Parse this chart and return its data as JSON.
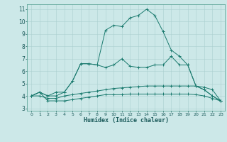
{
  "title": "",
  "xlabel": "Humidex (Indice chaleur)",
  "ylabel": "",
  "bg_color": "#cce8e8",
  "line_color": "#1a7a6e",
  "grid_color": "#aacfcf",
  "xlim": [
    -0.5,
    23.5
  ],
  "ylim": [
    2.8,
    11.4
  ],
  "xticks": [
    0,
    1,
    2,
    3,
    4,
    5,
    6,
    7,
    8,
    9,
    10,
    11,
    12,
    13,
    14,
    15,
    16,
    17,
    18,
    19,
    20,
    21,
    22,
    23
  ],
  "yticks": [
    3,
    4,
    5,
    6,
    7,
    8,
    9,
    10,
    11
  ],
  "curve1_x": [
    0,
    1,
    2,
    3,
    4,
    5,
    6,
    7,
    8,
    9,
    10,
    11,
    12,
    13,
    14,
    15,
    16,
    17,
    18,
    19,
    20,
    21,
    22,
    23
  ],
  "curve1_y": [
    4.0,
    4.3,
    3.6,
    3.6,
    3.6,
    3.7,
    3.8,
    3.9,
    4.0,
    4.1,
    4.1,
    4.1,
    4.15,
    4.15,
    4.15,
    4.15,
    4.15,
    4.15,
    4.15,
    4.15,
    4.1,
    4.0,
    3.8,
    3.6
  ],
  "curve2_x": [
    0,
    1,
    2,
    3,
    4,
    5,
    6,
    7,
    8,
    9,
    10,
    11,
    12,
    13,
    14,
    15,
    16,
    17,
    18,
    19,
    20,
    21,
    22,
    23
  ],
  "curve2_y": [
    4.0,
    4.0,
    3.8,
    3.8,
    4.0,
    4.1,
    4.2,
    4.3,
    4.4,
    4.5,
    4.6,
    4.65,
    4.7,
    4.75,
    4.8,
    4.8,
    4.8,
    4.8,
    4.8,
    4.8,
    4.8,
    4.7,
    4.5,
    3.6
  ],
  "curve3_x": [
    0,
    1,
    2,
    3,
    4,
    5,
    6,
    7,
    8,
    9,
    10,
    11,
    12,
    13,
    14,
    15,
    16,
    17,
    18,
    19,
    20,
    21,
    22,
    23
  ],
  "curve3_y": [
    4.0,
    4.3,
    4.0,
    4.0,
    4.3,
    5.2,
    6.6,
    6.6,
    6.5,
    6.3,
    6.5,
    7.0,
    6.4,
    6.3,
    6.3,
    6.5,
    6.5,
    7.2,
    6.5,
    6.5,
    4.8,
    4.5,
    4.0,
    3.6
  ],
  "curve4_x": [
    0,
    1,
    2,
    3,
    4,
    5,
    6,
    7,
    8,
    9,
    10,
    11,
    12,
    13,
    14,
    15,
    16,
    17,
    18,
    19,
    20,
    21,
    22,
    23
  ],
  "curve4_y": [
    4.0,
    4.3,
    4.0,
    4.3,
    4.3,
    5.2,
    6.6,
    6.6,
    6.5,
    9.3,
    9.7,
    9.6,
    10.3,
    10.5,
    11.0,
    10.5,
    9.2,
    7.7,
    7.2,
    6.5,
    4.8,
    4.5,
    4.0,
    3.6
  ],
  "dpi": 100,
  "figsize": [
    3.2,
    2.0
  ]
}
